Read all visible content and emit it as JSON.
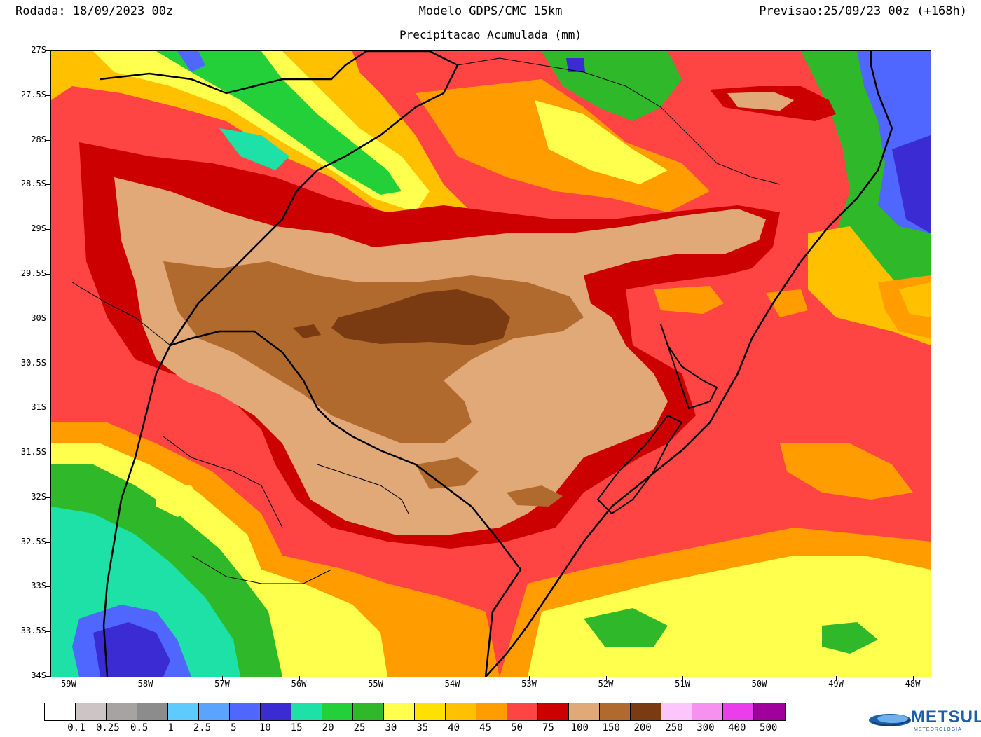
{
  "header": {
    "run": "Rodada: 18/09/2023 00z",
    "title": "Modelo GDPS/CMC 15km",
    "subtitle": "Precipitacao Acumulada (mm)",
    "forecast": "Previsao:25/09/23 00z (+168h)"
  },
  "axes": {
    "lat_labels": [
      "27S",
      "27.5S",
      "28S",
      "28.5S",
      "29S",
      "29.5S",
      "30S",
      "30.5S",
      "31S",
      "31.5S",
      "32S",
      "32.5S",
      "33S",
      "33.5S",
      "34S"
    ],
    "lon_labels": [
      "59W",
      "58W",
      "57W",
      "56W",
      "55W",
      "54W",
      "53W",
      "52W",
      "51W",
      "50W",
      "49W",
      "48W"
    ]
  },
  "legend": {
    "colors": [
      "#ffffff",
      "#cdc5c5",
      "#a8a3a3",
      "#8c8c8c",
      "#5ecbff",
      "#5aa3ff",
      "#4f66ff",
      "#3a2bd2",
      "#1de1a6",
      "#24d03a",
      "#2fb92a",
      "#ffff4d",
      "#ffe100",
      "#ffc000",
      "#ff9c00",
      "#ff4444",
      "#cc0000",
      "#e1a878",
      "#b06a2e",
      "#7a3b12",
      "#fcc6fc",
      "#f691f0",
      "#ec3ded",
      "#a0009c"
    ],
    "labels": [
      "0.1",
      "0.25",
      "0.5",
      "1",
      "2.5",
      "5",
      "10",
      "15",
      "20",
      "25",
      "30",
      "35",
      "40",
      "45",
      "50",
      "75",
      "100",
      "150",
      "200",
      "250",
      "300",
      "400",
      "500"
    ]
  },
  "logo": {
    "name": "METSUL",
    "sub": "METEOROLOGIA"
  }
}
